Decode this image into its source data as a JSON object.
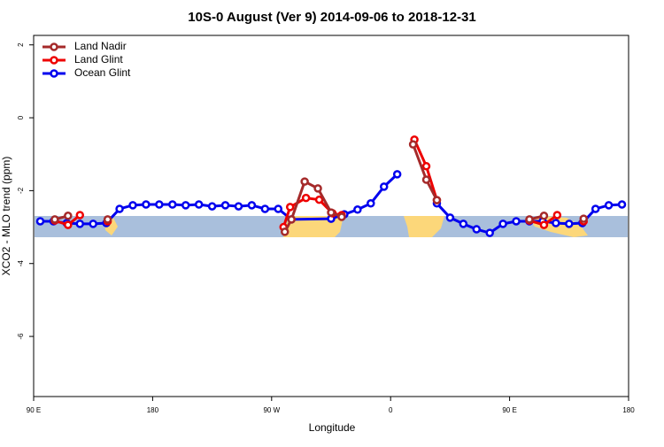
{
  "chart_data": {
    "type": "line",
    "title": "10S-0 August (Ver 9)   2014-09-06 to 2018-12-31",
    "x_label": "Longitude",
    "y_label": "XCO2 - MLO trend (ppm)",
    "xlim": [
      90,
      540
    ],
    "xticks": [
      {
        "value": 90,
        "label": "90 E"
      },
      {
        "value": 180,
        "label": "180"
      },
      {
        "value": 270,
        "label": "90 W"
      },
      {
        "value": 360,
        "label": "0"
      },
      {
        "value": 450,
        "label": "90 E"
      },
      {
        "value": 540,
        "label": "180"
      }
    ],
    "ylim": [
      -7.65,
      2.26
    ],
    "yticks": [
      2,
      0,
      -2,
      -4,
      -6
    ],
    "legend": "top-left",
    "series": [
      {
        "name": "Land Nadir",
        "color": "#a52a2a",
        "x": [
          106,
          116,
          130,
          146,
          200,
          280,
          285,
          295,
          305,
          315,
          323,
          350,
          377,
          387,
          395,
          430,
          465,
          476,
          490,
          506
        ],
        "values": [
          -2.79,
          -2.69,
          null,
          -2.79,
          null,
          -3.13,
          -2.79,
          -1.75,
          -1.94,
          -2.6,
          -2.72,
          null,
          -0.73,
          -1.7,
          -2.26,
          null,
          -2.79,
          -2.69,
          null,
          -2.77
        ]
      },
      {
        "name": "Land Glint",
        "color": "#ee0000",
        "x": [
          106,
          116,
          125,
          135,
          146,
          200,
          279,
          284,
          296,
          306,
          316,
          323,
          350,
          378,
          387,
          395,
          430,
          465,
          476,
          486,
          495,
          506
        ],
        "values": [
          -2.82,
          -2.94,
          -2.67,
          null,
          -2.84,
          null,
          -3.0,
          -2.45,
          -2.2,
          -2.25,
          -2.62,
          -2.67,
          null,
          -0.6,
          -1.33,
          -2.26,
          null,
          -2.82,
          -2.94,
          -2.67,
          null,
          -2.84
        ]
      },
      {
        "name": "Ocean Glint",
        "color": "#0000ee",
        "x": [
          95,
          105,
          115,
          125,
          135,
          145,
          155,
          165,
          175,
          185,
          195,
          205,
          215,
          225,
          235,
          245,
          255,
          265,
          275,
          285,
          315,
          325,
          335,
          345,
          355,
          365,
          380,
          395,
          405,
          415,
          425,
          435,
          445,
          455,
          465,
          475,
          485,
          495,
          505,
          515,
          525,
          535
        ],
        "values": [
          -2.84,
          -2.84,
          -2.89,
          -2.91,
          -2.91,
          -2.89,
          -2.5,
          -2.4,
          -2.38,
          -2.38,
          -2.38,
          -2.4,
          -2.38,
          -2.43,
          -2.4,
          -2.43,
          -2.4,
          -2.5,
          -2.5,
          -2.79,
          -2.77,
          -2.65,
          -2.52,
          -2.35,
          -1.89,
          -1.55,
          null,
          -2.35,
          -2.74,
          -2.91,
          -3.06,
          -3.16,
          -2.91,
          -2.84,
          -2.84,
          -2.84,
          -2.89,
          -2.91,
          -2.89,
          -2.5,
          -2.4,
          -2.38
        ]
      }
    ]
  }
}
